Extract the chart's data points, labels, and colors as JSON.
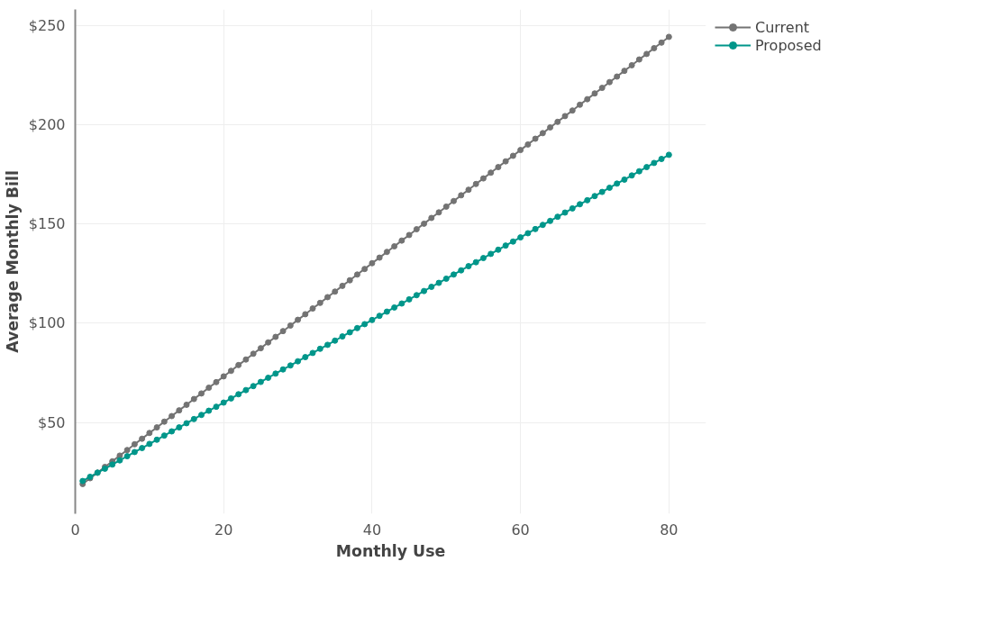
{
  "chart_data": {
    "type": "line",
    "xlabel": "Monthly Use",
    "ylabel": "Average Monthly Bill",
    "x": [
      1,
      2,
      3,
      4,
      5,
      6,
      7,
      8,
      9,
      10,
      11,
      12,
      13,
      14,
      15,
      16,
      17,
      18,
      19,
      20,
      21,
      22,
      23,
      24,
      25,
      26,
      27,
      28,
      29,
      30,
      31,
      32,
      33,
      34,
      35,
      36,
      37,
      38,
      39,
      40,
      41,
      42,
      43,
      44,
      45,
      46,
      47,
      48,
      49,
      50,
      51,
      52,
      53,
      54,
      55,
      56,
      57,
      58,
      59,
      60,
      61,
      62,
      63,
      64,
      65,
      66,
      67,
      68,
      69,
      70,
      71,
      72,
      73,
      74,
      75,
      76,
      77,
      78,
      79,
      80
    ],
    "series": [
      {
        "name": "Current",
        "color": "#737373",
        "values": [
          19.0,
          21.9,
          24.7,
          27.6,
          30.4,
          33.3,
          36.1,
          39.0,
          41.8,
          44.7,
          47.5,
          50.4,
          53.2,
          56.1,
          58.9,
          61.8,
          64.6,
          67.5,
          70.3,
          73.2,
          76.0,
          78.9,
          81.7,
          84.6,
          87.4,
          90.3,
          93.1,
          96.0,
          98.8,
          101.7,
          104.5,
          107.4,
          110.2,
          113.1,
          115.9,
          118.8,
          121.6,
          124.5,
          127.3,
          130.2,
          133.0,
          135.9,
          138.7,
          141.6,
          144.4,
          147.3,
          150.1,
          153.0,
          155.8,
          158.7,
          161.5,
          164.4,
          167.2,
          170.1,
          172.9,
          175.8,
          178.6,
          181.5,
          184.3,
          187.2,
          190.0,
          192.9,
          195.7,
          198.6,
          201.4,
          204.3,
          207.1,
          210.0,
          212.8,
          215.7,
          218.5,
          221.4,
          224.2,
          227.1,
          229.9,
          232.8,
          235.6,
          238.5,
          241.3,
          244.2
        ]
      },
      {
        "name": "Proposed",
        "color": "#00968a",
        "values": [
          20.5,
          22.6,
          24.7,
          26.7,
          28.8,
          30.9,
          33.0,
          35.1,
          37.1,
          39.2,
          41.3,
          43.4,
          45.5,
          47.5,
          49.6,
          51.7,
          53.8,
          55.9,
          57.9,
          60.0,
          62.1,
          64.2,
          66.3,
          68.3,
          70.4,
          72.5,
          74.6,
          76.7,
          78.7,
          80.8,
          82.9,
          85.0,
          87.1,
          89.1,
          91.2,
          93.3,
          95.4,
          97.5,
          99.5,
          101.6,
          103.7,
          105.8,
          107.9,
          109.9,
          112.0,
          114.1,
          116.2,
          118.3,
          120.3,
          122.4,
          124.5,
          126.6,
          128.7,
          130.7,
          132.8,
          134.9,
          137.0,
          139.1,
          141.1,
          143.2,
          145.3,
          147.4,
          149.5,
          151.5,
          153.6,
          155.7,
          157.8,
          159.9,
          161.9,
          164.0,
          166.1,
          168.2,
          170.3,
          172.3,
          174.4,
          176.5,
          178.6,
          180.7,
          182.7,
          184.8
        ]
      }
    ],
    "xlim": [
      0,
      85
    ],
    "ylim": [
      4,
      258
    ],
    "xticks": [
      0,
      20,
      40,
      60,
      80
    ],
    "yticks": [
      {
        "value": 50,
        "label": "$50"
      },
      {
        "value": 100,
        "label": "$100"
      },
      {
        "value": 150,
        "label": "$150"
      },
      {
        "value": 200,
        "label": "$200"
      },
      {
        "value": 250,
        "label": "$250"
      }
    ],
    "grid": true,
    "legend": "top right",
    "marker": "circle",
    "line_style": "solid"
  }
}
